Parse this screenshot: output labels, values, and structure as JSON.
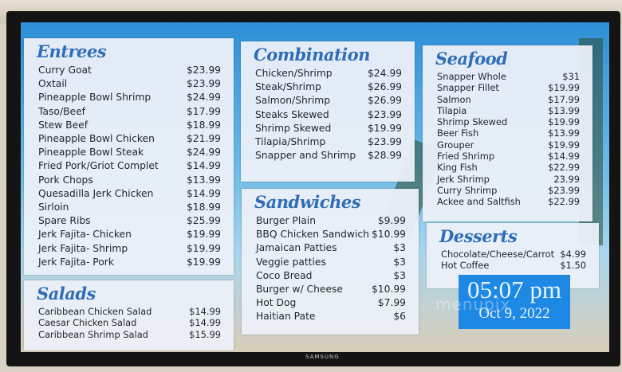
{
  "entrees": {
    "title": "Entrees",
    "items": [
      [
        "Curry Goat",
        "$23.99"
      ],
      [
        "Oxtail",
        "$23.99"
      ],
      [
        "Pineapple Bowl Shrimp",
        "$24.99"
      ],
      [
        "Taso/Beef",
        "$17.99"
      ],
      [
        "Stew Beef",
        "$18.99"
      ],
      [
        "Pineapple Bowl Chicken",
        "$21.99"
      ],
      [
        "Pineapple Bowl Steak",
        "$24.99"
      ],
      [
        "Fried Pork/Griot Complet",
        "$14.99"
      ],
      [
        "Pork Chops",
        "$13.99"
      ],
      [
        "Quesadilla Jerk Chicken",
        "$14.99"
      ],
      [
        "Sirloin",
        "$18.99"
      ],
      [
        "Spare Ribs",
        "$25.99"
      ],
      [
        "Jerk Fajita- Chicken",
        "$19.99"
      ],
      [
        "Jerk Fajita- Shrimp",
        "$19.99"
      ],
      [
        "Jerk Fajita- Pork",
        "$19.99"
      ]
    ]
  },
  "salads": {
    "title": "Salads",
    "items": [
      [
        "Caribbean Chicken Salad",
        "$14.99"
      ],
      [
        "Caesar Chicken Salad",
        "$14.99"
      ],
      [
        "Caribbean Shrimp Salad",
        "$15.99"
      ]
    ]
  },
  "combination": {
    "title": "Combination",
    "items": [
      [
        "Chicken/Shrimp",
        "$24.99"
      ],
      [
        "Steak/Shrimp",
        "$26.99"
      ],
      [
        "Salmon/Shrimp",
        "$26.99"
      ],
      [
        "Steaks Skewed",
        "$23.99"
      ],
      [
        "Shrimp Skewed",
        "$19.99"
      ],
      [
        "Tilapia/Shrimp",
        "$23.99"
      ],
      [
        "Snapper and Shrimp",
        "$28.99"
      ]
    ]
  },
  "sandwiches": {
    "title": "Sandwiches",
    "items": [
      [
        "Burger Plain",
        "$9.99"
      ],
      [
        "BBQ Chicken Sandwich",
        "$10.99"
      ],
      [
        "Jamaican Patties",
        "$3"
      ],
      [
        "Veggie patties",
        "$3"
      ],
      [
        "Coco Bread",
        "$3"
      ],
      [
        "Burger w/ Cheese",
        "$10.99"
      ],
      [
        "Hot Dog",
        "$7.99"
      ],
      [
        "Haitian Pate",
        "$6"
      ]
    ]
  },
  "seafood": {
    "title": "Seafood",
    "items": [
      [
        "Snapper Whole",
        "$31"
      ],
      [
        "Snapper Fillet",
        "$19.99"
      ],
      [
        "Salmon",
        "$17.99"
      ],
      [
        "Tilapia",
        "$13.99"
      ],
      [
        "Shrimp Skewed",
        "$19.99"
      ],
      [
        "Beer Fish",
        "$13.99"
      ],
      [
        "Grouper",
        "$19.99"
      ],
      [
        "Fried Shrimp",
        "$14.99"
      ],
      [
        "King Fish",
        "$22.99"
      ],
      [
        "Jerk Shrimp",
        "23.99"
      ],
      [
        "Curry Shrimp",
        "$23.99"
      ],
      [
        "Ackee and Saltfish",
        "$22.99"
      ]
    ]
  },
  "desserts": {
    "title": "Desserts",
    "items": [
      [
        "Chocolate/Cheese/Carrot",
        "$4.99"
      ],
      [
        "Hot Coffee",
        "$1.50"
      ]
    ]
  },
  "clock": {
    "time": "05:07 pm",
    "date": "Oct 9, 2022"
  },
  "watermark": "menupix",
  "tv_brand": "SAMSUNG",
  "colors": {
    "heading": "#2f6db7",
    "clock_bg": "#1e88e5"
  }
}
